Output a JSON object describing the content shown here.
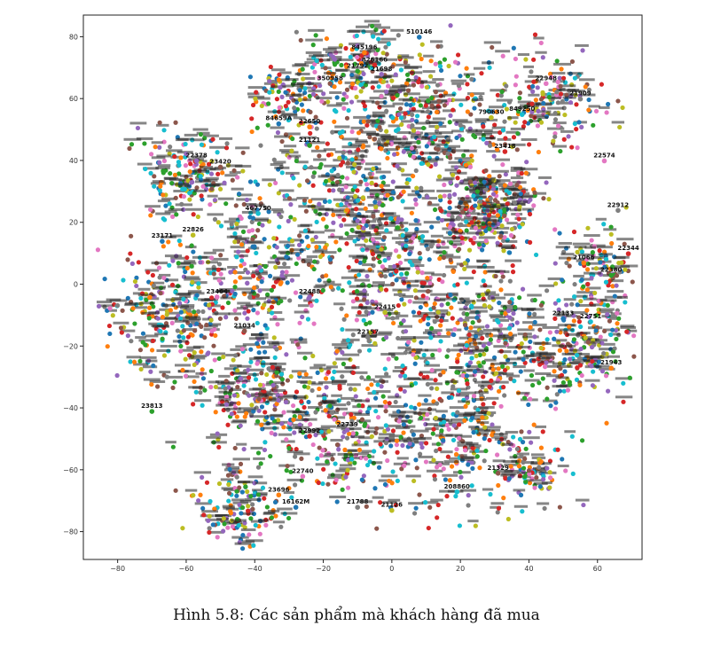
{
  "caption": "Hình 5.8: Các sản phẩm mà khách hàng đã mua",
  "chart_data": {
    "type": "scatter",
    "title": "",
    "xlabel": "",
    "ylabel": "",
    "xlim": [
      -90,
      73
    ],
    "ylim": [
      -89,
      87
    ],
    "x_ticks": [
      -80,
      -60,
      -40,
      -20,
      0,
      20,
      40,
      60
    ],
    "y_ticks": [
      -80,
      -60,
      -40,
      -20,
      0,
      20,
      40,
      60,
      80
    ],
    "x_tick_labels": [
      "−80",
      "−60",
      "−40",
      "−20",
      "0",
      "20",
      "40",
      "60"
    ],
    "y_tick_labels": [
      "−80",
      "−60",
      "−40",
      "−20",
      "0",
      "20",
      "40",
      "60",
      "80"
    ],
    "grid": false,
    "legend": "none",
    "colors": [
      "#1f77b4",
      "#ff7f0e",
      "#2ca02c",
      "#d62728",
      "#9467bd",
      "#8c564b",
      "#e377c2",
      "#7f7f7f",
      "#bcbd22",
      "#17becf"
    ],
    "points": [
      {
        "label": "510146",
        "x": 8,
        "y": 81
      },
      {
        "label": "845196",
        "x": -8,
        "y": 76
      },
      {
        "label": "21792",
        "x": -10,
        "y": 70
      },
      {
        "label": "826166",
        "x": -5,
        "y": 72
      },
      {
        "label": "21698",
        "x": -3,
        "y": 69
      },
      {
        "label": "350958",
        "x": -18,
        "y": 66
      },
      {
        "label": "22948",
        "x": 45,
        "y": 66
      },
      {
        "label": "21909",
        "x": 55,
        "y": 61
      },
      {
        "label": "790630",
        "x": 29,
        "y": 55
      },
      {
        "label": "849250",
        "x": 38,
        "y": 56
      },
      {
        "label": "84659A",
        "x": -33,
        "y": 53
      },
      {
        "label": "22650",
        "x": -24,
        "y": 52
      },
      {
        "label": "21121",
        "x": -24,
        "y": 46
      },
      {
        "label": "23418",
        "x": 33,
        "y": 44
      },
      {
        "label": "22378",
        "x": -57,
        "y": 41
      },
      {
        "label": "23420",
        "x": -50,
        "y": 39
      },
      {
        "label": "22574",
        "x": 62,
        "y": 41
      },
      {
        "label": "22912",
        "x": 66,
        "y": 25
      },
      {
        "label": "22826",
        "x": -58,
        "y": 17
      },
      {
        "label": "467750",
        "x": -39,
        "y": 24
      },
      {
        "label": "23171",
        "x": -67,
        "y": 15
      },
      {
        "label": "21066",
        "x": 56,
        "y": 8
      },
      {
        "label": "22380",
        "x": 64,
        "y": 4
      },
      {
        "label": "22344",
        "x": 69,
        "y": 11
      },
      {
        "label": "22488",
        "x": -24,
        "y": -3
      },
      {
        "label": "21034",
        "x": -43,
        "y": -14
      },
      {
        "label": "23464",
        "x": -51,
        "y": -3
      },
      {
        "label": "22157",
        "x": -7,
        "y": -16
      },
      {
        "label": "22415",
        "x": -2,
        "y": -8
      },
      {
        "label": "22751",
        "x": 58,
        "y": -11
      },
      {
        "label": "22133",
        "x": 50,
        "y": -10
      },
      {
        "label": "21943",
        "x": 64,
        "y": -26
      },
      {
        "label": "23813",
        "x": -70,
        "y": -40
      },
      {
        "label": "22992",
        "x": -24,
        "y": -48
      },
      {
        "label": "22739",
        "x": -13,
        "y": -46
      },
      {
        "label": "21329",
        "x": 31,
        "y": -60
      },
      {
        "label": "22740",
        "x": -26,
        "y": -61
      },
      {
        "label": "21788",
        "x": -10,
        "y": -71
      },
      {
        "label": "21126",
        "x": 0,
        "y": -72
      },
      {
        "label": "208860",
        "x": 19,
        "y": -66
      },
      {
        "label": "16162M",
        "x": -28,
        "y": -71
      },
      {
        "label": "23696",
        "x": -33,
        "y": -67
      }
    ]
  }
}
